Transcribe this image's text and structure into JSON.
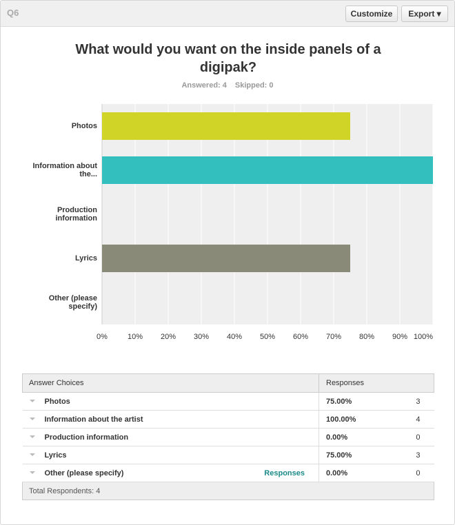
{
  "header": {
    "question": "Q6",
    "buttons": [
      "Customize",
      "Export"
    ]
  },
  "chart_data": {
    "type": "bar",
    "orientation": "horizontal",
    "title": "What would you want on the inside panels of a digipak?",
    "summary": [
      "Answered: 4",
      "Skipped: 0"
    ],
    "categories": [
      "Photos",
      "Information about the...",
      "Production information",
      "Lyrics",
      "Other (please specify)"
    ],
    "values": [
      75,
      100,
      0,
      75,
      0
    ],
    "colors": [
      "#cfd427",
      "#34bfbf",
      "#e37b3a",
      "#8a8a78",
      "#9b59b6"
    ],
    "xlim": [
      0,
      100
    ],
    "xticks": [
      {
        "value": 0,
        "label": "0%"
      },
      {
        "value": 10,
        "label": "10%"
      },
      {
        "value": 20,
        "label": "20%"
      },
      {
        "value": 30,
        "label": "30%"
      },
      {
        "value": 40,
        "label": "40%"
      },
      {
        "value": 50,
        "label": "50%"
      },
      {
        "value": 60,
        "label": "60%"
      },
      {
        "value": 70,
        "label": "70%"
      },
      {
        "value": 80,
        "label": "80%"
      },
      {
        "value": 90,
        "label": "90%"
      },
      {
        "value": 100,
        "label": "100%"
      }
    ],
    "grid": true
  },
  "table": {
    "headers": [
      "Answer Choices",
      "Responses"
    ],
    "rows": [
      {
        "choice": "Photos",
        "percent": "75.00%",
        "count": "3"
      },
      {
        "choice": "Information about the artist",
        "percent": "100.00%",
        "count": "4"
      },
      {
        "choice": "Production information",
        "percent": "0.00%",
        "count": "0"
      },
      {
        "choice": "Lyrics",
        "percent": "75.00%",
        "count": "3"
      },
      {
        "choice": "Other (please specify)",
        "link": "Responses",
        "percent": "0.00%",
        "count": "0"
      }
    ],
    "footer": "Total Respondents: 4"
  }
}
